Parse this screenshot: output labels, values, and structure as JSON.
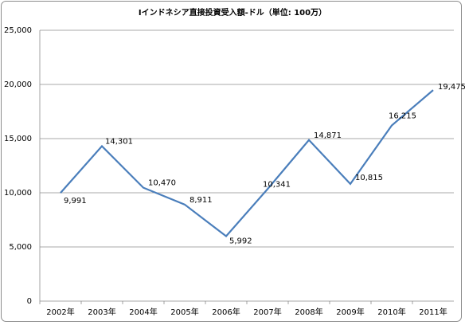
{
  "chart_data": {
    "type": "line",
    "title": "Iインドネシア直接投資受入額-ドル（単位: 100万）",
    "categories": [
      "2002年",
      "2003年",
      "2004年",
      "2005年",
      "2006年",
      "2007年",
      "2008年",
      "2009年",
      "2010年",
      "2011年"
    ],
    "series": [
      {
        "color": "#4a7ebb",
        "values": [
          9991,
          14301,
          10470,
          8911,
          5992,
          10341,
          14871,
          10815,
          16215,
          19475
        ],
        "value_labels": [
          "9,991",
          "14,301",
          "10,470",
          "8,911",
          "5,992",
          "10,341",
          "14,871",
          "10,815",
          "16,215",
          "19,475"
        ]
      }
    ],
    "ylim": [
      0,
      25000
    ],
    "yticks": [
      0,
      {
        "value": 5000,
        "label": "5,000"
      },
      {
        "value": 10000,
        "label": "10,000"
      },
      {
        "value": 15000,
        "label": "15,000"
      },
      {
        "value": 20000,
        "label": "20,000"
      },
      {
        "value": 25000,
        "label": "25,000"
      }
    ],
    "grid": true
  }
}
